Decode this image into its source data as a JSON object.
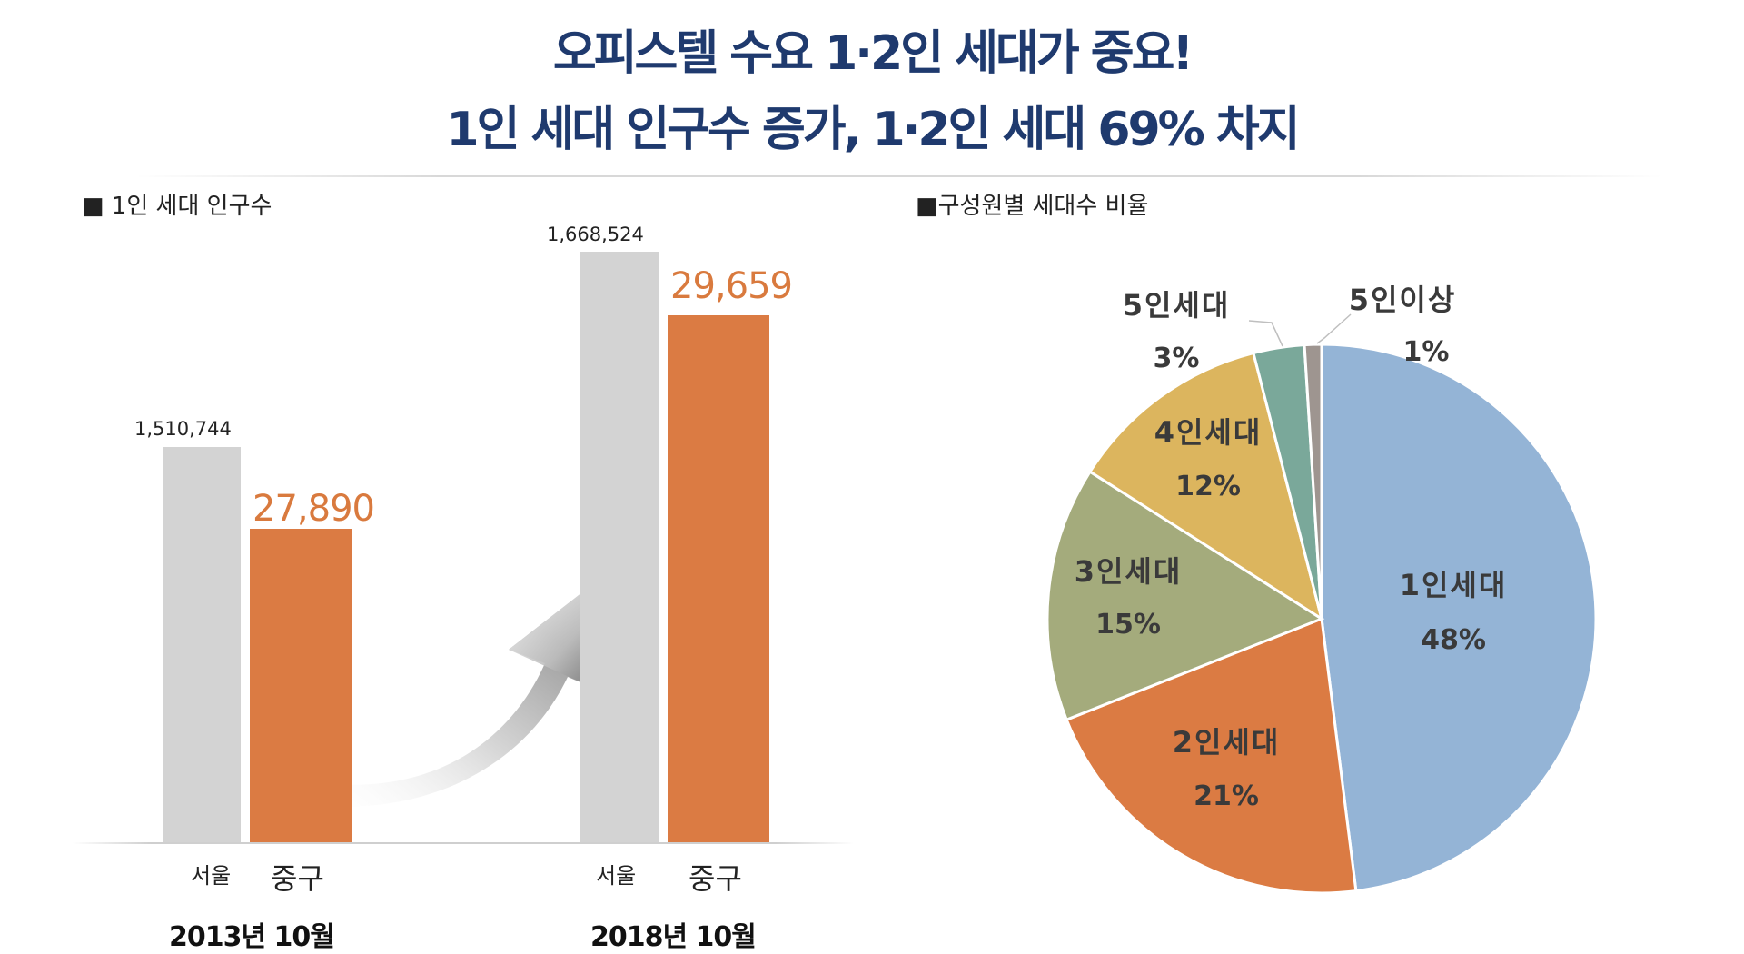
{
  "title": {
    "line1": "오피스텔 수요 1·2인 세대가 중요!",
    "line2": "1인 세대 인구수 증가, 1·2인 세대 69% 차지"
  },
  "left_section_label": "■ 1인 세대 인구수",
  "right_section_label": "■구성원별 세대수 비율",
  "chart_data": [
    {
      "type": "bar",
      "title": "1인 세대 인구수",
      "groups": [
        {
          "period": "2013년 10월",
          "bars": [
            {
              "category": "서울",
              "value": 1510744,
              "label": "1,510,744",
              "color": "#d3d3d3"
            },
            {
              "category": "중구",
              "value": 27890,
              "label": "27,890",
              "color": "#db7b43"
            }
          ]
        },
        {
          "period": "2018년 10월",
          "bars": [
            {
              "category": "서울",
              "value": 1668524,
              "label": "1,668,524",
              "color": "#d3d3d3"
            },
            {
              "category": "중구",
              "value": 29659,
              "label": "29,659",
              "color": "#db7b43"
            }
          ]
        }
      ]
    },
    {
      "type": "pie",
      "title": "구성원별 세대수 비율",
      "slices": [
        {
          "label": "1인세대",
          "value": 48,
          "pct_label": "48%",
          "color": "#94b4d6"
        },
        {
          "label": "2인세대",
          "value": 21,
          "pct_label": "21%",
          "color": "#db7b43"
        },
        {
          "label": "3인세대",
          "value": 15,
          "pct_label": "15%",
          "color": "#a4ab7c"
        },
        {
          "label": "4인세대",
          "value": 12,
          "pct_label": "12%",
          "color": "#dcb55e"
        },
        {
          "label": "5인세대",
          "value": 3,
          "pct_label": "3%",
          "color": "#7aa89a"
        },
        {
          "label": "5인이상",
          "value": 1,
          "pct_label": "1%",
          "color": "#9e9590"
        }
      ]
    }
  ]
}
